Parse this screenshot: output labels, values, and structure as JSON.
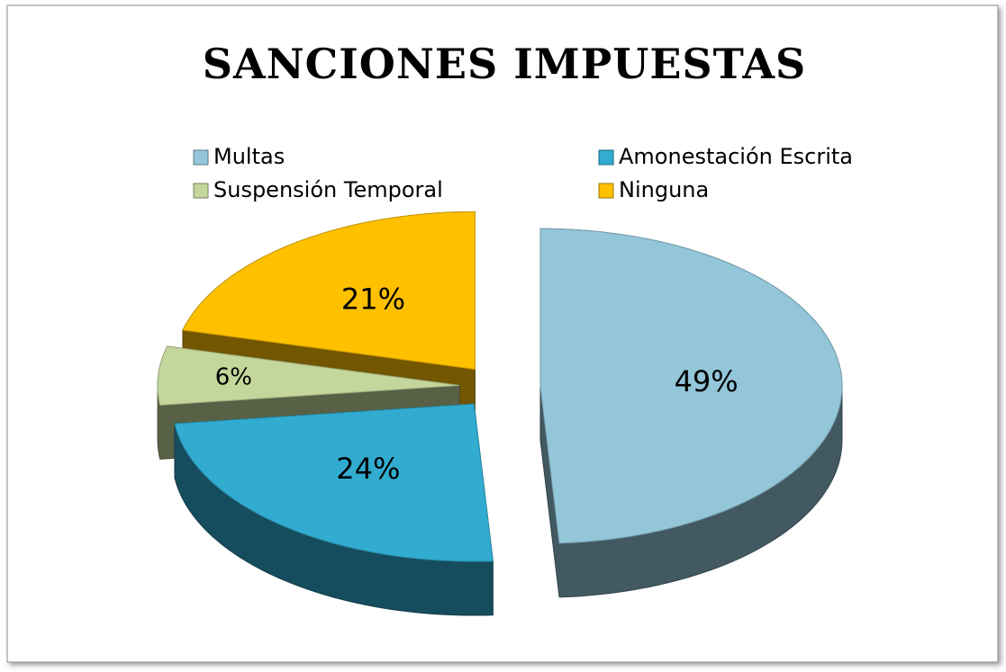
{
  "chart_data": {
    "type": "pie",
    "title": "SANCIONES IMPUESTAS",
    "categories": [
      "Multas",
      "Amonestación Escrita",
      "Suspensión Temporal",
      "Ninguna"
    ],
    "values": [
      49,
      24,
      6,
      21
    ],
    "value_labels": [
      "49%",
      "24%",
      "6%",
      "21%"
    ],
    "colors": [
      "#93c6d9",
      "#31acd0",
      "#c3d69b",
      "#ffc000"
    ],
    "legend": "top"
  }
}
